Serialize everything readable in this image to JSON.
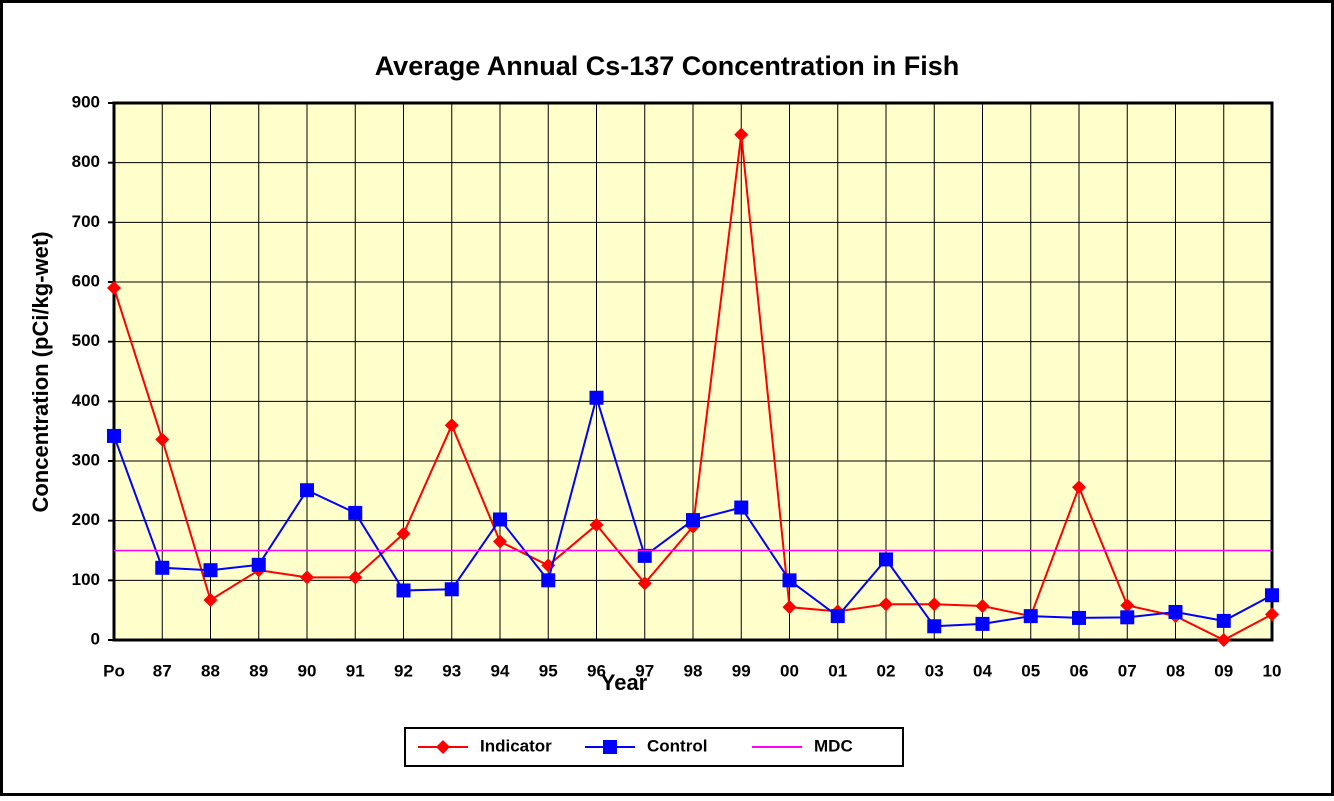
{
  "chart_data": {
    "type": "line",
    "title": "Average Annual Cs-137 Concentration in Fish",
    "x_label": "Year",
    "y_label": "Concentration (pCi/kg-wet)",
    "categories": [
      "Po",
      "87",
      "88",
      "89",
      "90",
      "91",
      "92",
      "93",
      "94",
      "95",
      "96",
      "97",
      "98",
      "99",
      "00",
      "01",
      "02",
      "03",
      "04",
      "05",
      "06",
      "07",
      "08",
      "09",
      "10"
    ],
    "series": [
      {
        "name": "Indicator",
        "color": "#ff0000",
        "marker": "diamond",
        "values": [
          590,
          336,
          67,
          117,
          105,
          105,
          178,
          360,
          165,
          125,
          193,
          95,
          190,
          847,
          55,
          48,
          60,
          60,
          57,
          40,
          256,
          58,
          40,
          0,
          43
        ]
      },
      {
        "name": "Control",
        "color": "#0000ff",
        "marker": "square",
        "values": [
          342,
          121,
          117,
          126,
          251,
          213,
          83,
          85,
          202,
          100,
          406,
          141,
          201,
          222,
          100,
          40,
          135,
          23,
          27,
          40,
          37,
          38,
          47,
          32,
          75
        ]
      },
      {
        "name": "MDC",
        "color": "#ff00ff",
        "marker": "none",
        "values": [
          150,
          150,
          150,
          150,
          150,
          150,
          150,
          150,
          150,
          150,
          150,
          150,
          150,
          150,
          150,
          150,
          150,
          150,
          150,
          150,
          150,
          150,
          150,
          150,
          150
        ]
      }
    ],
    "ylim": [
      0,
      900
    ],
    "yticks": [
      0,
      100,
      200,
      300,
      400,
      500,
      600,
      700,
      800,
      900
    ],
    "grid": true,
    "legend": "bottom"
  }
}
